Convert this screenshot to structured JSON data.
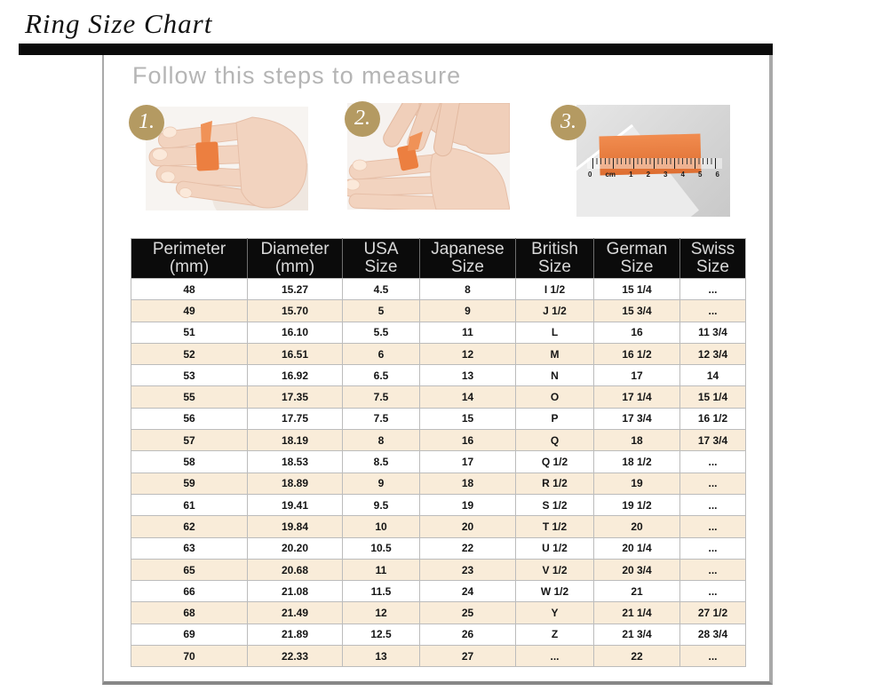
{
  "page_title": "Ring Size Chart",
  "steps": {
    "heading": "Follow this steps to measure",
    "badges": [
      "1.",
      "2.",
      "3."
    ],
    "ruler_labels": [
      "0",
      "cm",
      "1",
      "2",
      "3",
      "4",
      "5",
      "6"
    ]
  },
  "colors": {
    "accent_gold": "#b49a62",
    "tape_orange": "#ec7f40",
    "row_cream": "#f9ecd9",
    "header_bg": "#0b0b0b",
    "header_text": "#dadada"
  },
  "chart_data": {
    "type": "table",
    "title": "Ring Size Chart",
    "columns": [
      {
        "top": "Perimeter",
        "bottom": "(mm)"
      },
      {
        "top": "Diameter",
        "bottom": "(mm)"
      },
      {
        "top": "USA",
        "bottom": "Size"
      },
      {
        "top": "Japanese",
        "bottom": "Size"
      },
      {
        "top": "British",
        "bottom": "Size"
      },
      {
        "top": "German",
        "bottom": "Size"
      },
      {
        "top": "Swiss",
        "bottom": "Size"
      }
    ],
    "rows": [
      [
        "48",
        "15.27",
        "4.5",
        "8",
        "I 1/2",
        "15 1/4",
        "..."
      ],
      [
        "49",
        "15.70",
        "5",
        "9",
        "J 1/2",
        "15 3/4",
        "..."
      ],
      [
        "51",
        "16.10",
        "5.5",
        "11",
        "L",
        "16",
        "11 3/4"
      ],
      [
        "52",
        "16.51",
        "6",
        "12",
        "M",
        "16 1/2",
        "12 3/4"
      ],
      [
        "53",
        "16.92",
        "6.5",
        "13",
        "N",
        "17",
        "14"
      ],
      [
        "55",
        "17.35",
        "7.5",
        "14",
        "O",
        "17 1/4",
        "15 1/4"
      ],
      [
        "56",
        "17.75",
        "7.5",
        "15",
        "P",
        "17 3/4",
        "16 1/2"
      ],
      [
        "57",
        "18.19",
        "8",
        "16",
        "Q",
        "18",
        "17 3/4"
      ],
      [
        "58",
        "18.53",
        "8.5",
        "17",
        "Q 1/2",
        "18 1/2",
        "..."
      ],
      [
        "59",
        "18.89",
        "9",
        "18",
        "R 1/2",
        "19",
        "..."
      ],
      [
        "61",
        "19.41",
        "9.5",
        "19",
        "S 1/2",
        "19 1/2",
        "..."
      ],
      [
        "62",
        "19.84",
        "10",
        "20",
        "T 1/2",
        "20",
        "..."
      ],
      [
        "63",
        "20.20",
        "10.5",
        "22",
        "U 1/2",
        "20 1/4",
        "..."
      ],
      [
        "65",
        "20.68",
        "11",
        "23",
        "V 1/2",
        "20 3/4",
        "..."
      ],
      [
        "66",
        "21.08",
        "11.5",
        "24",
        "W 1/2",
        "21",
        "..."
      ],
      [
        "68",
        "21.49",
        "12",
        "25",
        "Y",
        "21 1/4",
        "27 1/2"
      ],
      [
        "69",
        "21.89",
        "12.5",
        "26",
        "Z",
        "21 3/4",
        "28 3/4"
      ],
      [
        "70",
        "22.33",
        "13",
        "27",
        "...",
        "22",
        "..."
      ]
    ]
  }
}
